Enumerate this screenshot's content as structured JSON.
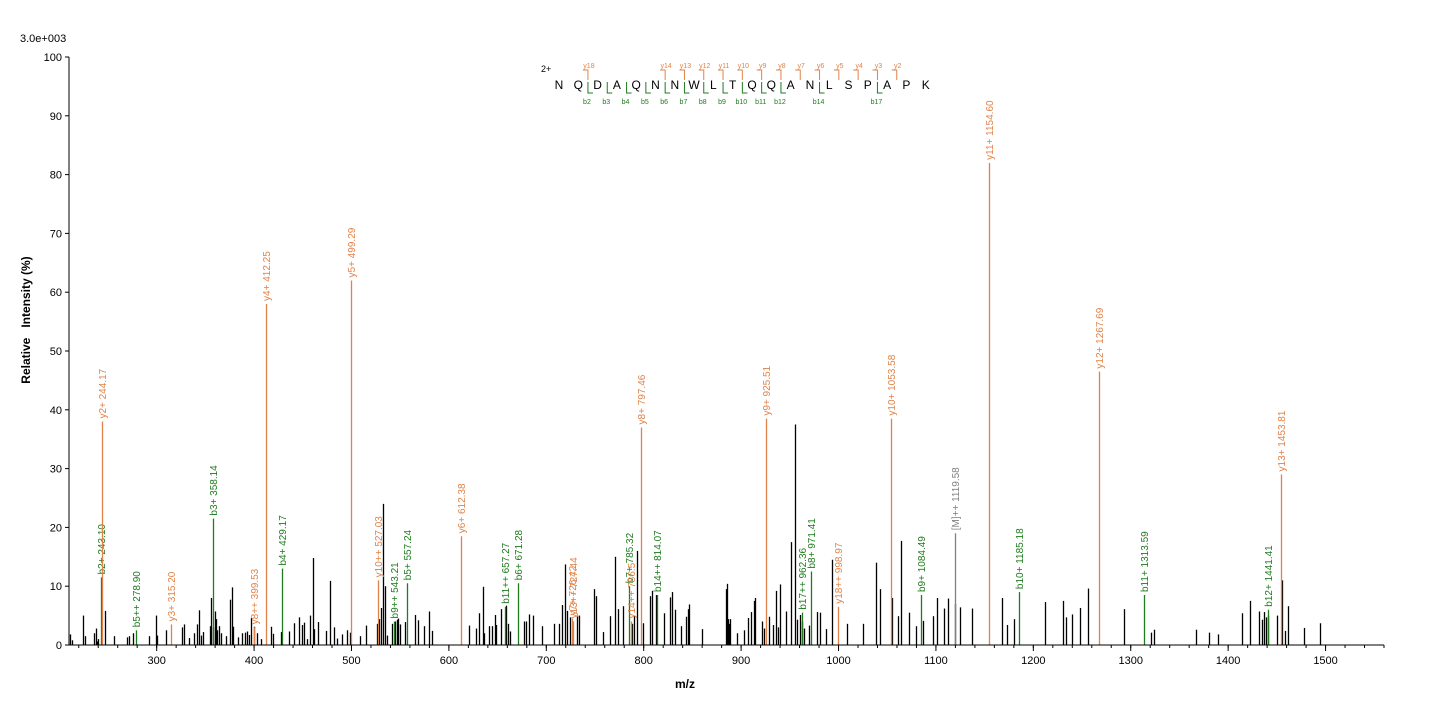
{
  "chart_data": {
    "type": "bar",
    "scale_label": "3.0e+003",
    "xlabel": "m/z",
    "ylabel": "Relative   Intensity (%)",
    "xlim": [
      210,
      1560
    ],
    "ylim": [
      0,
      100
    ],
    "x_ticks": [
      300,
      400,
      500,
      600,
      700,
      800,
      900,
      1000,
      1100,
      1200,
      1300,
      1400,
      1500
    ],
    "y_ticks": [
      0,
      10,
      20,
      30,
      40,
      50,
      60,
      70,
      80,
      90,
      100
    ],
    "colors": {
      "y": "#E0834A",
      "b": "#1E7B1E",
      "m": "#808080",
      "unassigned": "#000000",
      "axis": "#000000"
    },
    "sequence": {
      "charge": "2+",
      "residues": [
        "N",
        "Q",
        "D",
        "A",
        "Q",
        "N",
        "N",
        "W",
        "L",
        "T",
        "Q",
        "Q",
        "A",
        "N",
        "L",
        "S",
        "P",
        "A",
        "P",
        "K"
      ],
      "y_ions": [
        {
          "label": "y18",
          "after": 2
        },
        {
          "label": "y14",
          "after": 6
        },
        {
          "label": "y13",
          "after": 7
        },
        {
          "label": "y12",
          "after": 8
        },
        {
          "label": "y11",
          "after": 9
        },
        {
          "label": "y10",
          "after": 10
        },
        {
          "label": "y9",
          "after": 11
        },
        {
          "label": "y8",
          "after": 12
        },
        {
          "label": "y7",
          "after": 13
        },
        {
          "label": "y6",
          "after": 14
        },
        {
          "label": "y5",
          "after": 15
        },
        {
          "label": "y4",
          "after": 16
        },
        {
          "label": "y3",
          "after": 17
        },
        {
          "label": "y2",
          "after": 18
        }
      ],
      "b_ions": [
        {
          "label": "b2",
          "after": 2
        },
        {
          "label": "b3",
          "after": 3
        },
        {
          "label": "b4",
          "after": 4
        },
        {
          "label": "b5",
          "after": 5
        },
        {
          "label": "b6",
          "after": 6
        },
        {
          "label": "b7",
          "after": 7
        },
        {
          "label": "b8",
          "after": 8
        },
        {
          "label": "b9",
          "after": 9
        },
        {
          "label": "b10",
          "after": 10
        },
        {
          "label": "b11",
          "after": 11
        },
        {
          "label": "b12",
          "after": 12
        },
        {
          "label": "b14",
          "after": 14
        },
        {
          "label": "b17",
          "after": 17
        }
      ]
    },
    "labeled_peaks": [
      {
        "mz": 243.1,
        "intensity": 11.5,
        "label": "b2+ 243.10",
        "type": "b"
      },
      {
        "mz": 244.17,
        "intensity": 38,
        "label": "y2+ 244.17",
        "type": "y"
      },
      {
        "mz": 278.9,
        "intensity": 2.5,
        "label": "b5++ 278.90",
        "type": "b"
      },
      {
        "mz": 315.2,
        "intensity": 3.5,
        "label": "y3+ 315.20",
        "type": "y"
      },
      {
        "mz": 358.14,
        "intensity": 21.5,
        "label": "b3+ 358.14",
        "type": "b"
      },
      {
        "mz": 399.53,
        "intensity": 3,
        "label": "y8++ 399.53",
        "type": "y"
      },
      {
        "mz": 412.25,
        "intensity": 58,
        "label": "y4+ 412.25",
        "type": "y"
      },
      {
        "mz": 429.17,
        "intensity": 13,
        "label": "b4+ 429.17",
        "type": "b"
      },
      {
        "mz": 499.29,
        "intensity": 62,
        "label": "y5+ 499.29",
        "type": "y"
      },
      {
        "mz": 527.03,
        "intensity": 11,
        "label": "y10++ 527.03",
        "type": "y"
      },
      {
        "mz": 543.21,
        "intensity": 4,
        "label": "b9++ 543.21",
        "type": "b"
      },
      {
        "mz": 557.24,
        "intensity": 10.5,
        "label": "b5+ 557.24",
        "type": "b"
      },
      {
        "mz": 612.38,
        "intensity": 18.5,
        "label": "y6+ 612.38",
        "type": "y"
      },
      {
        "mz": 657.27,
        "intensity": 6.5,
        "label": "b11++ 657.27",
        "type": "b"
      },
      {
        "mz": 671.28,
        "intensity": 10.5,
        "label": "b6+ 671.28",
        "type": "b"
      },
      {
        "mz": 726.42,
        "intensity": 4.5,
        "label": "y7+ 726.42",
        "type": "y"
      },
      {
        "mz": 727.44,
        "intensity": 4,
        "label": "y13++ 727.44",
        "type": "y"
      },
      {
        "mz": 785.32,
        "intensity": 10,
        "label": "b7+ 785.32",
        "type": "b"
      },
      {
        "mz": 786.5,
        "intensity": 4,
        "label": "y14++ 786.5",
        "type": "y"
      },
      {
        "mz": 797.46,
        "intensity": 37,
        "label": "y8+ 797.46",
        "type": "y"
      },
      {
        "mz": 814.07,
        "intensity": 8.5,
        "label": "b14++ 814.07",
        "type": "b"
      },
      {
        "mz": 925.51,
        "intensity": 38.5,
        "label": "y9+ 925.51",
        "type": "y"
      },
      {
        "mz": 962.36,
        "intensity": 5.5,
        "label": "b17++ 962.36",
        "type": "b"
      },
      {
        "mz": 971.41,
        "intensity": 12.5,
        "label": "b8+ 971.41",
        "type": "b"
      },
      {
        "mz": 998.97,
        "intensity": 6.5,
        "label": "y18++ 998.97",
        "type": "y"
      },
      {
        "mz": 1053.58,
        "intensity": 38.5,
        "label": "y10+ 1053.58",
        "type": "y"
      },
      {
        "mz": 1084.49,
        "intensity": 8.5,
        "label": "b9+ 1084.49",
        "type": "b"
      },
      {
        "mz": 1119.58,
        "intensity": 19,
        "label": "[M]++ 1119.58",
        "type": "m"
      },
      {
        "mz": 1154.6,
        "intensity": 82,
        "label": "y11+ 1154.60",
        "type": "y"
      },
      {
        "mz": 1185.18,
        "intensity": 9,
        "label": "b10+ 1185.18",
        "type": "b"
      },
      {
        "mz": 1267.69,
        "intensity": 46.5,
        "label": "y12+ 1267.69",
        "type": "y"
      },
      {
        "mz": 1313.59,
        "intensity": 8.5,
        "label": "b11+ 1313.59",
        "type": "b"
      },
      {
        "mz": 1441.41,
        "intensity": 6,
        "label": "b12+ 1441.41",
        "type": "b"
      },
      {
        "mz": 1453.81,
        "intensity": 29,
        "label": "y13+ 1453.81",
        "type": "y"
      }
    ],
    "unlabeled_peaks": [
      [
        211,
        1.8
      ],
      [
        213,
        0.8
      ],
      [
        224,
        5
      ],
      [
        226,
        1.5
      ],
      [
        236,
        2
      ],
      [
        238,
        2.8
      ],
      [
        239,
        0.6
      ],
      [
        240,
        1
      ],
      [
        247,
        5.8
      ],
      [
        256,
        1.5
      ],
      [
        270,
        1.3
      ],
      [
        272,
        1.5
      ],
      [
        276,
        2
      ],
      [
        292,
        1.5
      ],
      [
        299,
        5
      ],
      [
        300,
        1.6
      ],
      [
        310,
        2.5
      ],
      [
        326,
        3
      ],
      [
        328,
        3.5
      ],
      [
        333,
        1.2
      ],
      [
        338,
        2
      ],
      [
        341,
        3.5
      ],
      [
        343,
        5.9
      ],
      [
        345,
        1.6
      ],
      [
        348,
        2.2
      ],
      [
        355,
        3.2
      ],
      [
        356,
        8
      ],
      [
        358,
        3
      ],
      [
        360,
        5.7
      ],
      [
        361,
        4.4
      ],
      [
        362,
        2.5
      ],
      [
        364,
        3.2
      ],
      [
        366,
        2
      ],
      [
        371,
        1.5
      ],
      [
        375,
        7.7
      ],
      [
        377,
        9.8
      ],
      [
        378,
        3.1
      ],
      [
        383,
        1.3
      ],
      [
        388,
        2
      ],
      [
        391,
        2.1
      ],
      [
        393,
        2.3
      ],
      [
        395,
        1.7
      ],
      [
        397,
        4.6
      ],
      [
        400,
        3.1
      ],
      [
        403,
        2
      ],
      [
        407,
        1
      ],
      [
        417,
        3.1
      ],
      [
        419,
        1.9
      ],
      [
        428,
        2.2
      ],
      [
        436,
        2.3
      ],
      [
        441,
        3.7
      ],
      [
        446,
        4.7
      ],
      [
        449,
        3.4
      ],
      [
        451,
        3.8
      ],
      [
        454,
        1
      ],
      [
        457,
        5
      ],
      [
        460,
        14.8
      ],
      [
        462,
        2.7
      ],
      [
        466,
        3.9
      ],
      [
        474,
        2.4
      ],
      [
        478,
        10.9
      ],
      [
        482,
        3
      ],
      [
        485,
        1.1
      ],
      [
        490,
        1.8
      ],
      [
        495,
        2.5
      ],
      [
        498,
        2.1
      ],
      [
        509,
        1.5
      ],
      [
        515,
        3.3
      ],
      [
        526,
        3.6
      ],
      [
        528,
        4.4
      ],
      [
        530,
        6.3
      ],
      [
        532,
        24
      ],
      [
        534,
        10
      ],
      [
        536,
        1.6
      ],
      [
        542,
        3.6
      ],
      [
        545,
        4
      ],
      [
        547,
        4.3
      ],
      [
        548,
        4.5
      ],
      [
        550,
        3.5
      ],
      [
        555,
        3.9
      ],
      [
        565,
        5.1
      ],
      [
        568,
        4.2
      ],
      [
        574,
        3.2
      ],
      [
        580,
        5.7
      ],
      [
        583,
        2.4
      ],
      [
        621,
        3.3
      ],
      [
        628,
        2.8
      ],
      [
        631,
        5.4
      ],
      [
        635,
        9.9
      ],
      [
        636,
        2
      ],
      [
        641,
        3.2
      ],
      [
        644,
        3.2
      ],
      [
        647,
        5.1
      ],
      [
        648,
        3.4
      ],
      [
        654,
        6.1
      ],
      [
        659,
        6.7
      ],
      [
        661,
        3.6
      ],
      [
        663,
        2.3
      ],
      [
        677,
        4
      ],
      [
        679,
        4
      ],
      [
        682,
        5.2
      ],
      [
        686,
        5
      ],
      [
        696,
        3.2
      ],
      [
        708,
        3.6
      ],
      [
        713,
        3.6
      ],
      [
        716,
        6.8
      ],
      [
        719,
        13.7
      ],
      [
        721,
        5.8
      ],
      [
        724,
        4.7
      ],
      [
        732,
        5
      ],
      [
        734,
        5
      ],
      [
        749,
        9.5
      ],
      [
        751,
        8.3
      ],
      [
        758,
        2.2
      ],
      [
        765,
        4.9
      ],
      [
        771,
        15
      ],
      [
        774,
        6.1
      ],
      [
        779,
        6.6
      ],
      [
        788,
        3.6
      ],
      [
        790,
        4.9
      ],
      [
        793,
        16
      ],
      [
        799,
        3.7
      ],
      [
        806,
        8.3
      ],
      [
        809,
        9.2
      ],
      [
        813,
        8.5
      ],
      [
        821,
        5.4
      ],
      [
        827,
        8.1
      ],
      [
        829,
        9
      ],
      [
        832,
        6
      ],
      [
        838,
        3.2
      ],
      [
        843,
        4.8
      ],
      [
        845,
        6.1
      ],
      [
        847,
        6.9
      ],
      [
        860,
        2.7
      ],
      [
        884,
        9.5
      ],
      [
        886,
        10.4
      ],
      [
        887,
        4.4
      ],
      [
        888,
        3.6
      ],
      [
        889,
        4.4
      ],
      [
        896,
        2
      ],
      [
        903,
        2.5
      ],
      [
        907,
        4.6
      ],
      [
        910,
        5.6
      ],
      [
        913,
        7.5
      ],
      [
        914,
        8
      ],
      [
        921,
        4
      ],
      [
        923,
        2.8
      ],
      [
        929,
        4.8
      ],
      [
        933,
        3.4
      ],
      [
        936,
        9.2
      ],
      [
        938,
        3
      ],
      [
        940,
        10.3
      ],
      [
        946,
        5.7
      ],
      [
        951,
        17.5
      ],
      [
        955,
        37.5
      ],
      [
        957,
        4.3
      ],
      [
        960,
        5.1
      ],
      [
        962,
        4
      ],
      [
        965,
        2.8
      ],
      [
        970,
        3.3
      ],
      [
        978,
        5.6
      ],
      [
        981,
        5.5
      ],
      [
        987,
        2.7
      ],
      [
        993,
        14.5
      ],
      [
        1009,
        3.6
      ],
      [
        1025,
        3.6
      ],
      [
        1038,
        14
      ],
      [
        1043,
        9.5
      ],
      [
        1055,
        8
      ],
      [
        1061,
        4.9
      ],
      [
        1064,
        17.7
      ],
      [
        1072,
        5.5
      ],
      [
        1080,
        3.2
      ],
      [
        1087,
        4.1
      ],
      [
        1097,
        4.9
      ],
      [
        1101,
        8
      ],
      [
        1108,
        6.2
      ],
      [
        1112,
        7.9
      ],
      [
        1120,
        7
      ],
      [
        1125,
        6.4
      ],
      [
        1137,
        6.2
      ],
      [
        1168,
        8
      ],
      [
        1173,
        3.4
      ],
      [
        1180,
        4.4
      ],
      [
        1212,
        7.3
      ],
      [
        1230,
        7.5
      ],
      [
        1234,
        4.7
      ],
      [
        1240,
        5.2
      ],
      [
        1248,
        6.3
      ],
      [
        1256,
        9.6
      ],
      [
        1293,
        6.1
      ],
      [
        1321,
        2.1
      ],
      [
        1324,
        2.6
      ],
      [
        1367,
        2.6
      ],
      [
        1380,
        2.1
      ],
      [
        1390,
        1.8
      ],
      [
        1414,
        5.4
      ],
      [
        1422,
        7.5
      ],
      [
        1432,
        5.7
      ],
      [
        1435,
        4.3
      ],
      [
        1437,
        5.6
      ],
      [
        1439,
        4.7
      ],
      [
        1441,
        5
      ],
      [
        1450,
        5
      ],
      [
        1455,
        11
      ],
      [
        1458,
        2.4
      ],
      [
        1461,
        6.6
      ],
      [
        1478,
        2.9
      ],
      [
        1494,
        3.7
      ]
    ]
  }
}
